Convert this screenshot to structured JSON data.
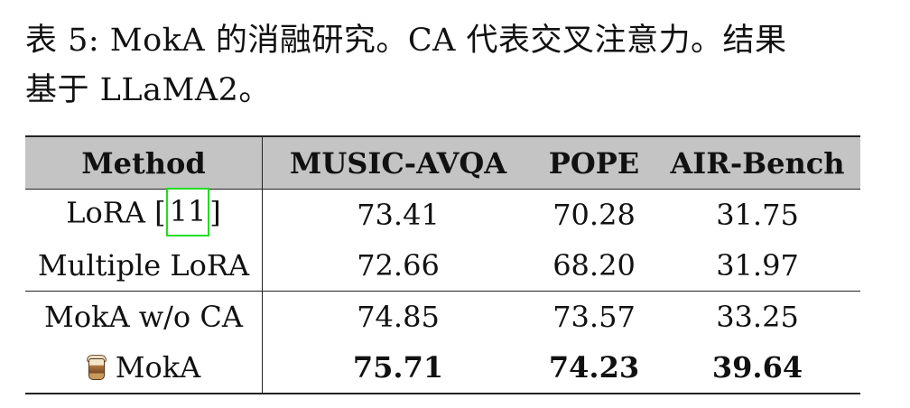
{
  "caption": {
    "line1": "表 5: MokA 的消融研究。CA 代表交叉注意力。结果",
    "line2": "基于 LLaMA2。"
  },
  "table": {
    "headers": [
      "Method",
      "MUSIC-AVQA",
      "POPE",
      "AIR-Bench"
    ],
    "rows": [
      {
        "method": "LoRA [",
        "cite": "11",
        "method_suffix": "]",
        "values": [
          "73.41",
          "70.28",
          "31.75"
        ]
      },
      {
        "method": "Multiple LoRA",
        "values": [
          "72.66",
          "68.20",
          "31.97"
        ]
      },
      {
        "method": "MokA w/o CA",
        "values": [
          "74.85",
          "73.57",
          "33.25"
        ]
      },
      {
        "method": "MokA",
        "icon": "bubble-tea-icon",
        "values": [
          "75.71",
          "74.23",
          "39.64"
        ]
      }
    ]
  },
  "colors": {
    "header_bg": "#c4c4c4",
    "citation_highlight": "#22dd22"
  }
}
